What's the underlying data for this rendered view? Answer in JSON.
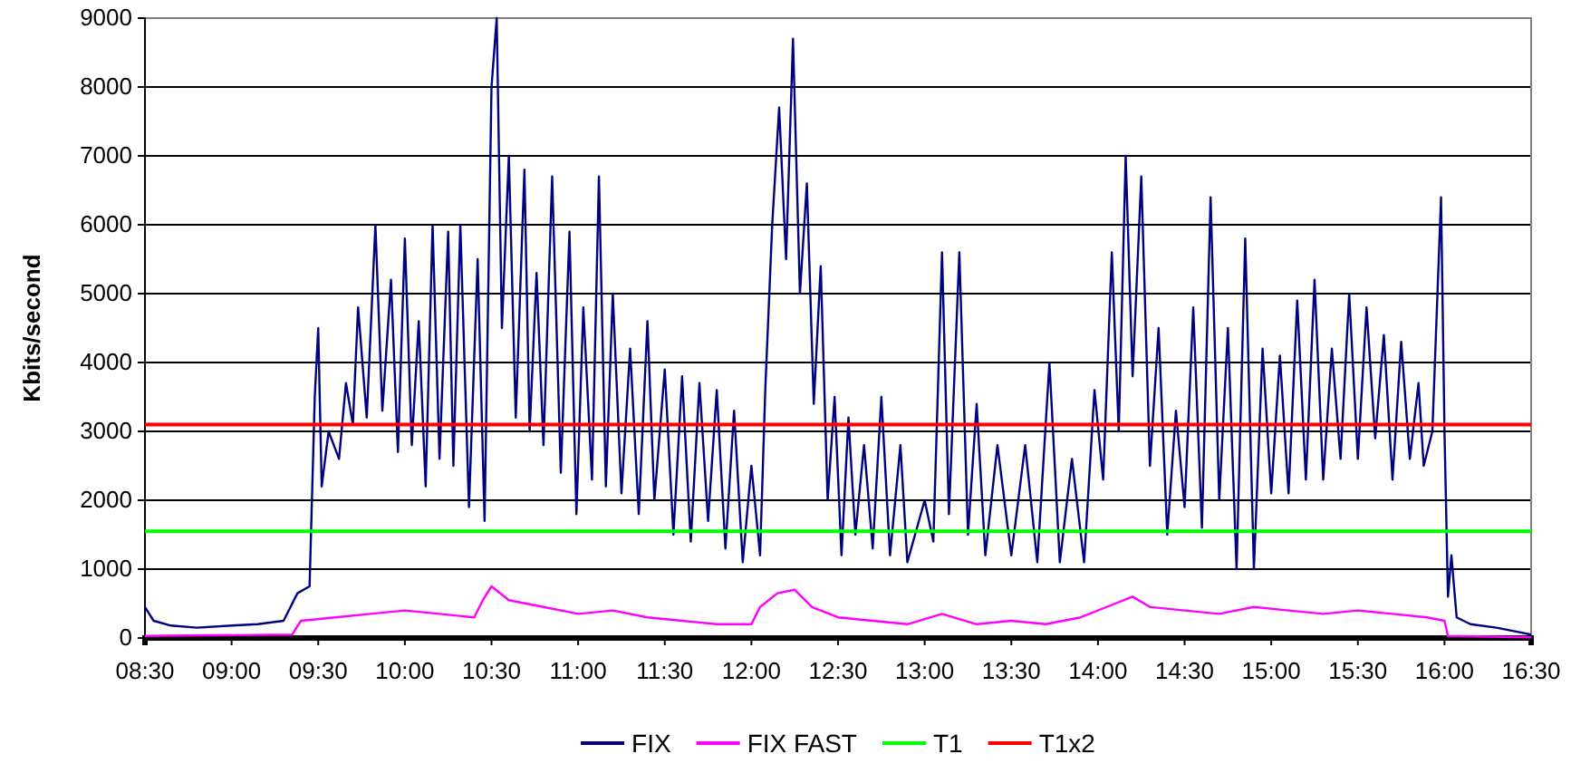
{
  "chart_data": {
    "type": "line",
    "ylabel": "Kbits/second",
    "xlim": [
      8.5,
      16.5
    ],
    "ylim": [
      0,
      9000
    ],
    "xticks": [
      {
        "value": 8.5,
        "label": "08:30"
      },
      {
        "value": 9,
        "label": "09:00"
      },
      {
        "value": 9.5,
        "label": "09:30"
      },
      {
        "value": 10,
        "label": "10:00"
      },
      {
        "value": 10.5,
        "label": "10:30"
      },
      {
        "value": 11,
        "label": "11:00"
      },
      {
        "value": 11.5,
        "label": "11:30"
      },
      {
        "value": 12,
        "label": "12:00"
      },
      {
        "value": 12.5,
        "label": "12:30"
      },
      {
        "value": 13,
        "label": "13:00"
      },
      {
        "value": 13.5,
        "label": "13:30"
      },
      {
        "value": 14,
        "label": "14:00"
      },
      {
        "value": 14.5,
        "label": "14:30"
      },
      {
        "value": 15,
        "label": "15:00"
      },
      {
        "value": 15.5,
        "label": "15:30"
      },
      {
        "value": 16,
        "label": "16:00"
      },
      {
        "value": 16.5,
        "label": "16:30"
      }
    ],
    "yticks": [
      0,
      1000,
      2000,
      3000,
      4000,
      5000,
      6000,
      7000,
      8000,
      9000
    ],
    "grid": "y",
    "legend": "bottom",
    "marker": "none",
    "line_style": "solid",
    "series": [
      {
        "name": "FIX",
        "color": "#000080",
        "x": [
          8.5,
          8.55,
          8.65,
          8.8,
          9.0,
          9.15,
          9.3,
          9.38,
          9.45,
          9.48,
          9.5,
          9.52,
          9.56,
          9.62,
          9.66,
          9.7,
          9.73,
          9.78,
          9.83,
          9.87,
          9.92,
          9.96,
          10.0,
          10.04,
          10.08,
          10.12,
          10.16,
          10.2,
          10.25,
          10.28,
          10.32,
          10.37,
          10.42,
          10.46,
          10.5,
          10.53,
          10.56,
          10.6,
          10.64,
          10.69,
          10.72,
          10.76,
          10.8,
          10.85,
          10.9,
          10.95,
          10.99,
          11.03,
          11.08,
          11.12,
          11.16,
          11.2,
          11.25,
          11.3,
          11.35,
          11.4,
          11.44,
          11.5,
          11.55,
          11.6,
          11.65,
          11.7,
          11.75,
          11.8,
          11.85,
          11.9,
          11.95,
          12.0,
          12.05,
          12.08,
          12.12,
          12.16,
          12.2,
          12.24,
          12.28,
          12.32,
          12.36,
          12.4,
          12.44,
          12.48,
          12.52,
          12.56,
          12.6,
          12.65,
          12.7,
          12.75,
          12.8,
          12.86,
          12.9,
          13.0,
          13.05,
          13.1,
          13.14,
          13.2,
          13.25,
          13.3,
          13.35,
          13.42,
          13.5,
          13.58,
          13.65,
          13.72,
          13.78,
          13.85,
          13.92,
          13.98,
          14.03,
          14.08,
          14.12,
          14.16,
          14.2,
          14.25,
          14.3,
          14.35,
          14.4,
          14.45,
          14.5,
          14.55,
          14.6,
          14.65,
          14.7,
          14.75,
          14.8,
          14.85,
          14.9,
          14.95,
          15.0,
          15.05,
          15.1,
          15.15,
          15.2,
          15.25,
          15.3,
          15.35,
          15.4,
          15.45,
          15.5,
          15.55,
          15.6,
          15.65,
          15.7,
          15.75,
          15.8,
          15.85,
          15.88,
          15.93,
          15.98,
          16.0,
          16.02,
          16.04,
          16.07,
          16.15,
          16.3,
          16.4,
          16.5
        ],
        "values": [
          450,
          250,
          180,
          150,
          180,
          200,
          250,
          650,
          750,
          3500,
          4500,
          2200,
          3000,
          2600,
          3700,
          3100,
          4800,
          3200,
          6000,
          3300,
          5200,
          2700,
          5800,
          2800,
          4600,
          2200,
          6000,
          2600,
          5900,
          2500,
          6000,
          1900,
          5500,
          1700,
          8000,
          9000,
          4500,
          7000,
          3200,
          6800,
          3000,
          5300,
          2800,
          6700,
          2400,
          5900,
          1800,
          4800,
          2300,
          6700,
          2200,
          5000,
          2100,
          4200,
          1800,
          4600,
          2000,
          3900,
          1500,
          3800,
          1400,
          3700,
          1700,
          3600,
          1300,
          3300,
          1100,
          2500,
          1200,
          3600,
          6000,
          7700,
          5500,
          8700,
          5000,
          6600,
          3400,
          5400,
          2000,
          3500,
          1200,
          3200,
          1500,
          2800,
          1300,
          3500,
          1200,
          2800,
          1100,
          2000,
          1400,
          5600,
          1800,
          5600,
          1500,
          3400,
          1200,
          2800,
          1200,
          2800,
          1100,
          4000,
          1100,
          2600,
          1100,
          3600,
          2300,
          5600,
          3000,
          7000,
          3800,
          6700,
          2500,
          4500,
          1500,
          3300,
          1900,
          4800,
          1600,
          6400,
          2000,
          4500,
          1000,
          5800,
          1000,
          4200,
          2100,
          4100,
          2100,
          4900,
          2300,
          5200,
          2300,
          4200,
          2600,
          5000,
          2600,
          4800,
          2900,
          4400,
          2300,
          4300,
          2600,
          3700,
          2500,
          3000,
          6400,
          3000,
          600,
          1200,
          300,
          200,
          150,
          100,
          50
        ]
      },
      {
        "name": "FIX FAST",
        "color": "#ff00ff",
        "x": [
          8.5,
          9.35,
          9.4,
          9.6,
          9.8,
          10.0,
          10.2,
          10.4,
          10.45,
          10.5,
          10.6,
          10.8,
          11.0,
          11.2,
          11.4,
          11.6,
          11.8,
          12.0,
          12.05,
          12.15,
          12.25,
          12.35,
          12.5,
          12.7,
          12.9,
          13.1,
          13.3,
          13.5,
          13.7,
          13.9,
          14.1,
          14.2,
          14.3,
          14.5,
          14.7,
          14.9,
          15.1,
          15.3,
          15.5,
          15.7,
          15.9,
          16.0,
          16.02,
          16.5
        ],
        "values": [
          30,
          50,
          250,
          300,
          350,
          400,
          350,
          300,
          550,
          750,
          550,
          450,
          350,
          400,
          300,
          250,
          200,
          200,
          450,
          650,
          700,
          450,
          300,
          250,
          200,
          350,
          200,
          250,
          200,
          300,
          500,
          600,
          450,
          400,
          350,
          450,
          400,
          350,
          400,
          350,
          300,
          250,
          30,
          10
        ]
      },
      {
        "name": "T1",
        "color": "#00ff00",
        "x": [
          8.5,
          16.5
        ],
        "values": [
          1550,
          1550
        ]
      },
      {
        "name": "T1x2",
        "color": "#ff0000",
        "x": [
          8.5,
          16.5
        ],
        "values": [
          3100,
          3100
        ]
      }
    ]
  }
}
